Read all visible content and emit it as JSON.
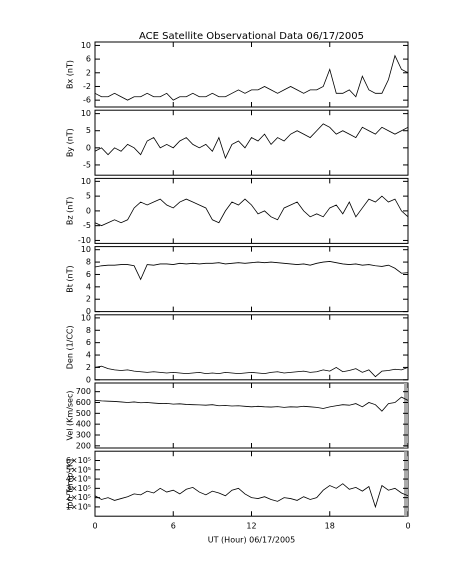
{
  "chart_data": [
    {
      "type": "line",
      "title": "ACE Satellite Observational Data   06/17/2005",
      "y_label": "Bx (nT)",
      "x": [
        0,
        0.5,
        1,
        1.5,
        2,
        2.5,
        3,
        3.5,
        4,
        4.5,
        5,
        5.5,
        6,
        6.5,
        7,
        7.5,
        8,
        8.5,
        9,
        9.5,
        10,
        10.5,
        11,
        11.5,
        12,
        12.5,
        13,
        13.5,
        14,
        14.5,
        15,
        15.5,
        16,
        16.5,
        17,
        17.5,
        18,
        18.5,
        19,
        19.5,
        20,
        20.5,
        21,
        21.5,
        22,
        22.5,
        23,
        23.5,
        24
      ],
      "values": [
        -4,
        -5,
        -5,
        -4,
        -5,
        -6,
        -5,
        -5,
        -4,
        -5,
        -5,
        -4,
        -6,
        -5,
        -5,
        -4,
        -5,
        -5,
        -4,
        -5,
        -5,
        -4,
        -3,
        -4,
        -3,
        -3,
        -2,
        -3,
        -4,
        -3,
        -2,
        -3,
        -4,
        -3,
        -3,
        -2,
        3,
        -4,
        -4,
        -3,
        -5,
        1,
        -3,
        -4,
        -4,
        0,
        7,
        3,
        2
      ],
      "color": "#000000",
      "xlim": [
        0,
        24
      ],
      "xticks": [
        0,
        6,
        12,
        18,
        {
          "value": 24,
          "label": "0"
        }
      ],
      "ylim": [
        -8,
        11
      ],
      "yticks": [
        -6,
        -2,
        2,
        6,
        10
      ]
    },
    {
      "type": "line",
      "y_label": "By (nT)",
      "x": [
        0,
        0.5,
        1,
        1.5,
        2,
        2.5,
        3,
        3.5,
        4,
        4.5,
        5,
        5.5,
        6,
        6.5,
        7,
        7.5,
        8,
        8.5,
        9,
        9.5,
        10,
        10.5,
        11,
        11.5,
        12,
        12.5,
        13,
        13.5,
        14,
        14.5,
        15,
        15.5,
        16,
        16.5,
        17,
        17.5,
        18,
        18.5,
        19,
        19.5,
        20,
        20.5,
        21,
        21.5,
        22,
        22.5,
        23,
        23.5,
        24
      ],
      "values": [
        -1,
        0,
        -2,
        0,
        -1,
        1,
        0,
        -2,
        2,
        3,
        0,
        1,
        0,
        2,
        3,
        1,
        0,
        1,
        -1,
        3,
        -3,
        1,
        2,
        0,
        3,
        2,
        4,
        1,
        3,
        2,
        4,
        5,
        4,
        3,
        5,
        7,
        6,
        4,
        5,
        4,
        3,
        6,
        5,
        4,
        6,
        5,
        4,
        5,
        6
      ],
      "color": "#000000",
      "xlim": [
        0,
        24
      ],
      "xticks": [
        0,
        6,
        12,
        18,
        {
          "value": 24,
          "label": "0"
        }
      ],
      "ylim": [
        -8,
        11
      ],
      "yticks": [
        -5,
        0,
        5,
        10
      ]
    },
    {
      "type": "line",
      "y_label": "Bz (nT)",
      "x": [
        0,
        0.5,
        1,
        1.5,
        2,
        2.5,
        3,
        3.5,
        4,
        4.5,
        5,
        5.5,
        6,
        6.5,
        7,
        7.5,
        8,
        8.5,
        9,
        9.5,
        10,
        10.5,
        11,
        11.5,
        12,
        12.5,
        13,
        13.5,
        14,
        14.5,
        15,
        15.5,
        16,
        16.5,
        17,
        17.5,
        18,
        18.5,
        19,
        19.5,
        20,
        20.5,
        21,
        21.5,
        22,
        22.5,
        23,
        23.5,
        24
      ],
      "values": [
        -4,
        -5,
        -4,
        -3,
        -4,
        -3,
        1,
        3,
        2,
        3,
        4,
        2,
        1,
        3,
        4,
        3,
        2,
        1,
        -3,
        -4,
        0,
        3,
        2,
        4,
        2,
        -1,
        0,
        -2,
        -3,
        1,
        2,
        3,
        0,
        -2,
        -1,
        -2,
        1,
        2,
        -1,
        3,
        -2,
        1,
        4,
        3,
        5,
        3,
        4,
        0,
        -2
      ],
      "color": "#000000",
      "xlim": [
        0,
        24
      ],
      "xticks": [
        0,
        6,
        12,
        18,
        {
          "value": 24,
          "label": "0"
        }
      ],
      "ylim": [
        -11,
        11
      ],
      "yticks": [
        -10,
        -5,
        0,
        5,
        10
      ]
    },
    {
      "type": "line",
      "y_label": "Bt (nT)",
      "x": [
        0,
        0.5,
        1,
        1.5,
        2,
        2.5,
        3,
        3.5,
        4,
        4.5,
        5,
        5.5,
        6,
        6.5,
        7,
        7.5,
        8,
        8.5,
        9,
        9.5,
        10,
        10.5,
        11,
        11.5,
        12,
        12.5,
        13,
        13.5,
        14,
        14.5,
        15,
        15.5,
        16,
        16.5,
        17,
        17.5,
        18,
        18.5,
        19,
        19.5,
        20,
        20.5,
        21,
        21.5,
        22,
        22.5,
        23,
        23.5,
        24
      ],
      "values": [
        7.2,
        7.4,
        7.5,
        7.5,
        7.6,
        7.6,
        7.4,
        5.2,
        7.6,
        7.5,
        7.7,
        7.7,
        7.6,
        7.8,
        7.7,
        7.8,
        7.7,
        7.8,
        7.8,
        7.9,
        7.7,
        7.8,
        7.9,
        7.8,
        7.9,
        8.0,
        7.9,
        8.0,
        7.9,
        7.8,
        7.7,
        7.6,
        7.7,
        7.5,
        7.8,
        8.0,
        8.1,
        7.9,
        7.7,
        7.6,
        7.7,
        7.5,
        7.6,
        7.4,
        7.3,
        7.5,
        7.0,
        6.2,
        6.3
      ],
      "color": "#000000",
      "xlim": [
        0,
        24
      ],
      "xticks": [
        0,
        6,
        12,
        18,
        {
          "value": 24,
          "label": "0"
        }
      ],
      "ylim": [
        0,
        10.5
      ],
      "yticks": [
        0,
        2,
        4,
        6,
        8,
        10
      ]
    },
    {
      "type": "line",
      "y_label": "Den (1/CC)",
      "x": [
        0,
        0.5,
        1,
        1.5,
        2,
        2.5,
        3,
        3.5,
        4,
        4.5,
        5,
        5.5,
        6,
        6.5,
        7,
        7.5,
        8,
        8.5,
        9,
        9.5,
        10,
        10.5,
        11,
        11.5,
        12,
        12.5,
        13,
        13.5,
        14,
        14.5,
        15,
        15.5,
        16,
        16.5,
        17,
        17.5,
        18,
        18.5,
        19,
        19.5,
        20,
        20.5,
        21,
        21.5,
        22,
        22.5,
        23,
        23.5,
        24
      ],
      "values": [
        2.0,
        2.2,
        1.8,
        1.6,
        1.5,
        1.6,
        1.4,
        1.3,
        1.2,
        1.3,
        1.2,
        1.1,
        1.2,
        1.1,
        1.0,
        1.1,
        1.2,
        1.0,
        1.1,
        1.0,
        1.2,
        1.1,
        1.0,
        1.1,
        1.2,
        1.1,
        1.0,
        1.2,
        1.3,
        1.1,
        1.2,
        1.3,
        1.4,
        1.2,
        1.3,
        1.6,
        1.4,
        2.0,
        1.3,
        1.5,
        1.8,
        1.2,
        1.6,
        0.5,
        1.4,
        1.5,
        1.7,
        1.6,
        2.0
      ],
      "color": "#000000",
      "xlim": [
        0,
        24
      ],
      "xticks": [
        0,
        6,
        12,
        18,
        {
          "value": 24,
          "label": "0"
        }
      ],
      "ylim": [
        0,
        10.5
      ],
      "yticks": [
        0,
        2,
        4,
        6,
        8,
        10
      ]
    },
    {
      "type": "line",
      "y_label": "Vel (Km/sec)",
      "x": [
        0,
        0.5,
        1,
        1.5,
        2,
        2.5,
        3,
        3.5,
        4,
        4.5,
        5,
        5.5,
        6,
        6.5,
        7,
        7.5,
        8,
        8.5,
        9,
        9.5,
        10,
        10.5,
        11,
        11.5,
        12,
        12.5,
        13,
        13.5,
        14,
        14.5,
        15,
        15.5,
        16,
        16.5,
        17,
        17.5,
        18,
        18.5,
        19,
        19.5,
        20,
        20.5,
        21,
        21.5,
        22,
        22.5,
        23,
        23.5,
        24
      ],
      "values": [
        620,
        615,
        612,
        610,
        605,
        600,
        605,
        598,
        600,
        595,
        590,
        592,
        585,
        588,
        582,
        580,
        578,
        575,
        580,
        570,
        572,
        568,
        570,
        565,
        560,
        565,
        560,
        558,
        562,
        555,
        560,
        558,
        565,
        560,
        555,
        545,
        560,
        570,
        580,
        575,
        590,
        560,
        600,
        580,
        520,
        590,
        600,
        650,
        620
      ],
      "color": "#000000",
      "xlim": [
        0,
        24
      ],
      "xticks": [
        0,
        6,
        12,
        18,
        {
          "value": 24,
          "label": "0"
        }
      ],
      "ylim": [
        180,
        780
      ],
      "yticks": [
        200,
        300,
        400,
        500,
        600,
        700
      ]
    },
    {
      "type": "line",
      "y_label": "Ion Temp (K)",
      "x_label": "UT (Hour)   06/17/2005",
      "x": [
        0,
        0.5,
        1,
        1.5,
        2,
        2.5,
        3,
        3.5,
        4,
        4.5,
        5,
        5.5,
        6,
        6.5,
        7,
        7.5,
        8,
        8.5,
        9,
        9.5,
        10,
        10.5,
        11,
        11.5,
        12,
        12.5,
        13,
        13.5,
        14,
        14.5,
        15,
        15.5,
        16,
        16.5,
        17,
        17.5,
        18,
        18.5,
        19,
        19.5,
        20,
        20.5,
        21,
        21.5,
        22,
        22.5,
        23,
        23.5,
        24
      ],
      "values": [
        220000,
        180000,
        200000,
        170000,
        190000,
        210000,
        240000,
        230000,
        270000,
        250000,
        300000,
        260000,
        280000,
        240000,
        290000,
        310000,
        260000,
        230000,
        270000,
        250000,
        220000,
        280000,
        300000,
        240000,
        200000,
        190000,
        210000,
        180000,
        160000,
        200000,
        190000,
        170000,
        210000,
        180000,
        200000,
        280000,
        330000,
        300000,
        350000,
        290000,
        310000,
        270000,
        320000,
        100000,
        330000,
        280000,
        300000,
        250000,
        220000
      ],
      "color": "#000000",
      "xlim": [
        0,
        24
      ],
      "xticks": [
        0,
        6,
        12,
        18,
        {
          "value": 24,
          "label": "0"
        }
      ],
      "ylim": [
        0,
        700000
      ],
      "yticks": [
        {
          "value": 100000,
          "label": "1×10⁵"
        },
        {
          "value": 200000,
          "label": "2×10⁵"
        },
        {
          "value": 300000,
          "label": "3×10⁵"
        },
        {
          "value": 400000,
          "label": "4×10⁵"
        },
        {
          "value": 500000,
          "label": "5×10⁵"
        },
        {
          "value": 600000,
          "label": "6×10⁵"
        }
      ]
    }
  ]
}
